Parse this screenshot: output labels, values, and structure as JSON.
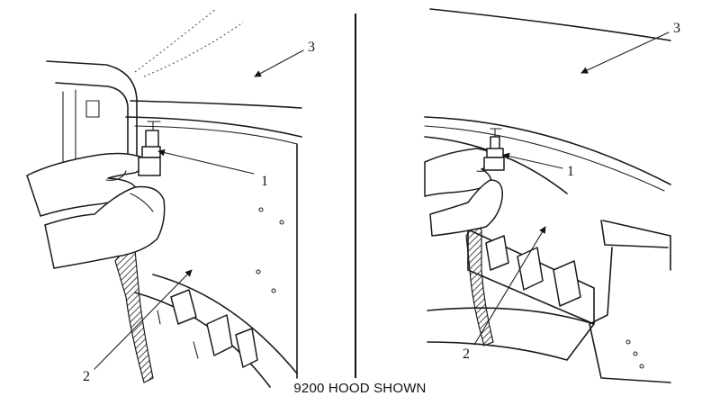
{
  "caption": "9200 HOOD SHOWN",
  "left_view": {
    "callouts": [
      "1",
      "2",
      "3"
    ]
  },
  "right_view": {
    "callouts": [
      "1",
      "2",
      "3"
    ]
  }
}
